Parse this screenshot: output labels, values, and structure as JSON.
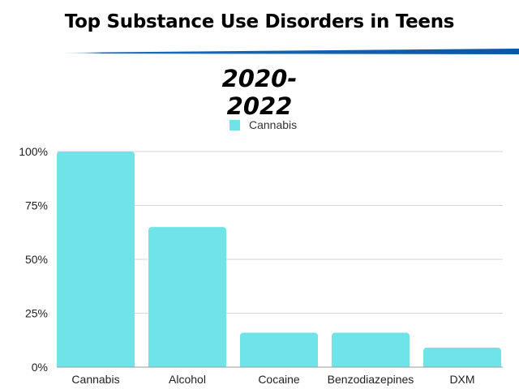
{
  "chart_data": {
    "type": "bar",
    "title": "Top Substance Use Disorders in Teens",
    "subtitle": "2020-2022",
    "categories": [
      "Cannabis",
      "Alcohol",
      "Cocaine",
      "Benzodiazepines",
      "DXM"
    ],
    "series": [
      {
        "name": "Cannabis",
        "values": [
          100,
          65,
          16,
          16,
          9
        ]
      }
    ],
    "yticks": [
      "0%",
      "25%",
      "50%",
      "75%",
      "100%"
    ],
    "ylim": [
      0,
      100
    ],
    "grid": true,
    "legend_position": "top-center",
    "bar_color": "#6ee4e8",
    "accent_color": "#1a6bbd"
  }
}
